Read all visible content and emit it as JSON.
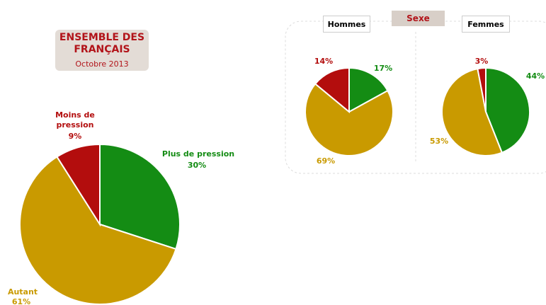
{
  "group_title": "Sexe",
  "chart_data": [
    {
      "type": "pie",
      "title": "ENSEMBLE DES FRANÇAIS",
      "subtitle": "Octobre 2013",
      "categories": [
        "Plus de pression",
        "Autant",
        "Moins de pression"
      ],
      "values": [
        30,
        61,
        9
      ],
      "value_labels": [
        "30%",
        "61%",
        "9%"
      ],
      "colors": [
        "#148c14",
        "#c99a00",
        "#b30d0d"
      ]
    },
    {
      "type": "pie",
      "title": "Hommes",
      "values": [
        17,
        69,
        14
      ],
      "value_labels": [
        "17%",
        "69%",
        "14%"
      ],
      "colors": [
        "#148c14",
        "#c99a00",
        "#b30d0d"
      ]
    },
    {
      "type": "pie",
      "title": "Femmes",
      "values": [
        44,
        53,
        3
      ],
      "value_labels": [
        "44%",
        "53%",
        "3%"
      ],
      "colors": [
        "#148c14",
        "#c99a00",
        "#b30d0d"
      ]
    }
  ]
}
